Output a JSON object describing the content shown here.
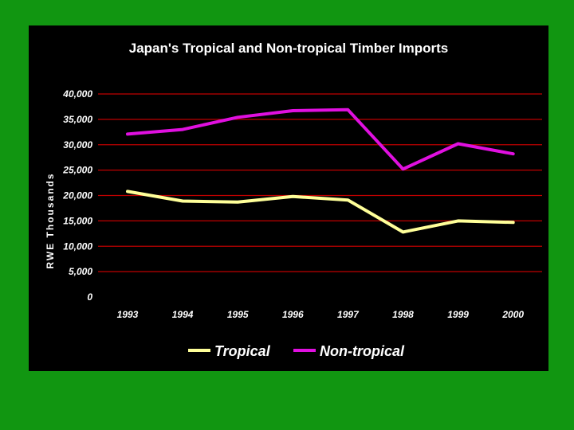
{
  "chart_data": {
    "type": "line",
    "title": "Japan's Tropical and Non-tropical Timber Imports",
    "xlabel": "",
    "ylabel": "RWE Thousands",
    "categories": [
      "1993",
      "1994",
      "1995",
      "1996",
      "1997",
      "1998",
      "1999",
      "2000"
    ],
    "ylim": [
      0,
      40000
    ],
    "yticks": [
      0,
      5000,
      10000,
      15000,
      20000,
      25000,
      30000,
      35000,
      40000
    ],
    "ytick_labels": [
      "0",
      "5,000",
      "10,000",
      "15,000",
      "20,000",
      "25,000",
      "30,000",
      "35,000",
      "40,000"
    ],
    "grid": true,
    "legend_position": "bottom",
    "series": [
      {
        "name": "Tropical",
        "color": "#ffff99",
        "values": [
          20800,
          18900,
          18700,
          19800,
          19100,
          12800,
          15000,
          14700
        ]
      },
      {
        "name": "Non-tropical",
        "color": "#e010e0",
        "values": [
          32100,
          33000,
          35400,
          36700,
          36900,
          25200,
          30200,
          28200
        ]
      }
    ],
    "colors": {
      "background": "#119611",
      "panel": "#000000",
      "gridline": "#c00000",
      "text": "#ffffff"
    }
  }
}
